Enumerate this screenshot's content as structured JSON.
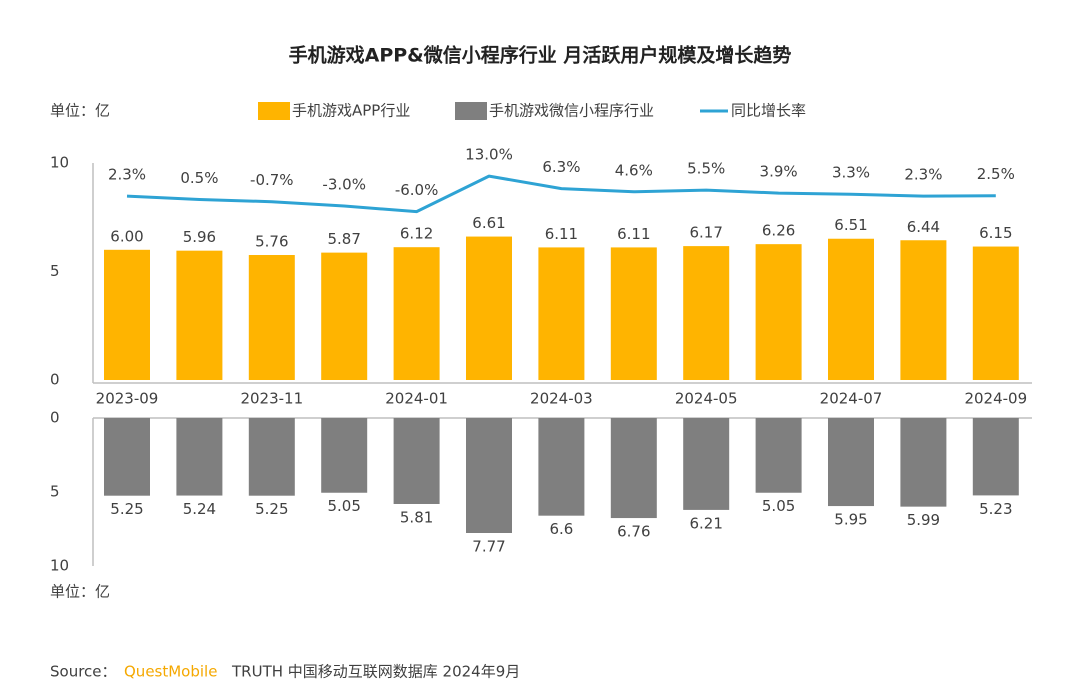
{
  "chart_data": [
    {
      "type": "bar",
      "title": "手机游戏APP&微信小程序行业 月活跃用户规模及增长趋势",
      "unit_label": "单位：亿",
      "categories": [
        "2023-09",
        null,
        "2023-11",
        null,
        "2024-01",
        null,
        "2024-03",
        null,
        "2024-05",
        null,
        "2024-07",
        null,
        "2024-09"
      ],
      "series": [
        {
          "name": "手机游戏APP行业",
          "color": "#ffb400",
          "values": [
            6.0,
            5.96,
            5.76,
            5.87,
            6.12,
            6.61,
            6.11,
            6.11,
            6.17,
            6.26,
            6.51,
            6.44,
            6.15
          ],
          "value_labels": [
            "6.00",
            "5.96",
            "5.76",
            "5.87",
            "6.12",
            "6.61",
            "6.11",
            "6.11",
            "6.17",
            "6.26",
            "6.51",
            "6.44",
            "6.15"
          ]
        },
        {
          "name": "同比增长率",
          "color": "#2ea3d4",
          "type": "line",
          "axis": "y2",
          "values": [
            2.3,
            0.5,
            -0.7,
            -3.0,
            -6.0,
            13.0,
            6.3,
            4.6,
            5.5,
            3.9,
            3.3,
            2.3,
            2.5
          ],
          "value_labels": [
            "2.3%",
            "0.5%",
            "-0.7%",
            "-3.0%",
            "-6.0%",
            "13.0%",
            "6.3%",
            "4.6%",
            "5.5%",
            "3.9%",
            "3.3%",
            "2.3%",
            "2.5%"
          ]
        }
      ],
      "ylim": [
        0,
        10
      ],
      "yticks": [
        0,
        5,
        10
      ],
      "y2lim": [
        -96,
        20
      ],
      "grid": false
    },
    {
      "type": "bar",
      "unit_label": "单位：亿",
      "inverted": true,
      "series": [
        {
          "name": "手机游戏微信小程序行业",
          "color": "#7f7f7f",
          "values": [
            5.25,
            5.24,
            5.25,
            5.05,
            5.81,
            7.77,
            6.6,
            6.76,
            6.21,
            5.05,
            5.95,
            5.99,
            5.23
          ]
        }
      ],
      "ylim": [
        0,
        10
      ],
      "yticks": [
        0,
        5,
        10
      ],
      "grid": false
    }
  ],
  "source": {
    "label": "Source：",
    "brand": "QuestMobile",
    "text": "TRUTH 中国移动互联网数据库 2024年9月"
  }
}
